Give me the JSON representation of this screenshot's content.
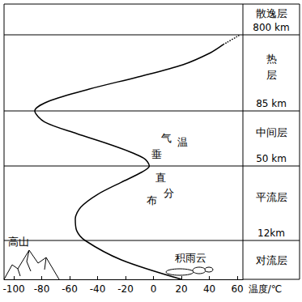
{
  "chart_data": {
    "type": "line",
    "x_label": "温度/℃",
    "xlim": [
      -107,
      64
    ],
    "xticks": [
      -100,
      -80,
      -60,
      -40,
      -20,
      0,
      20,
      40,
      60
    ],
    "grid": false,
    "layers": [
      {
        "name": "对流层",
        "bottom": 0,
        "top": 12,
        "top_label": "12km"
      },
      {
        "name": "平流层",
        "top": 50,
        "top_label": "50 km"
      },
      {
        "name": "中间层",
        "top": 85,
        "top_label": "85 km"
      },
      {
        "name": "热层",
        "top": 800,
        "top_label": "800 km"
      },
      {
        "name": "散逸层"
      }
    ],
    "series": [
      {
        "x": [
          20,
          -23,
          -49,
          -55,
          -56,
          -52,
          -40,
          -23,
          -8,
          -3,
          -7,
          -29,
          -55,
          -78,
          -85,
          -75,
          -46,
          -11,
          21,
          41,
          50
        ],
        "values": [
          0,
          6,
          12,
          17,
          23,
          29,
          35.5,
          41.7,
          47,
          50,
          55,
          63,
          70.6,
          78,
          85,
          176,
          290,
          405,
          519,
          633,
          709
        ],
        "color": "#000000",
        "line_style": "solid"
      },
      {
        "x": [
          50,
          62
        ],
        "values": [
          709,
          800
        ],
        "color": "#000000",
        "line_style": "dotted"
      }
    ],
    "annotations": {
      "curve": "气温垂直分布",
      "mountain": "高山",
      "cloud": "积雨云"
    }
  }
}
